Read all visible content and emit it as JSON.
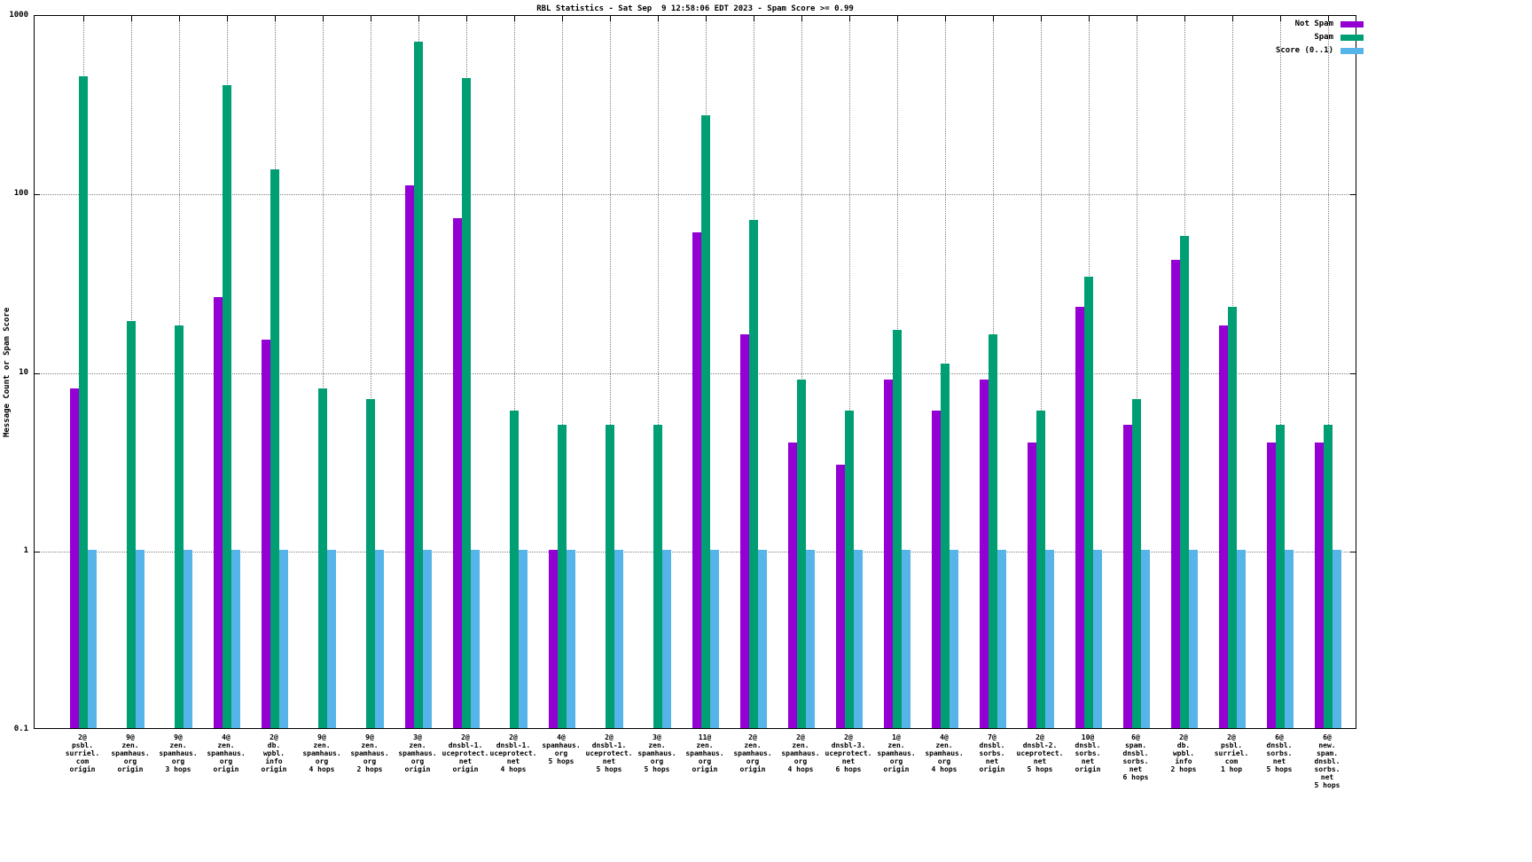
{
  "chart_data": {
    "type": "bar",
    "title": "RBL Statistics - Sat Sep  9 12:58:06 EDT 2023 - Spam Score >= 0.99",
    "ylabel": "Message Count or Spam Score",
    "xlabel": "",
    "y_scale": "log",
    "ylim": [
      0.1,
      1000
    ],
    "yticks": [
      0.1,
      1,
      10,
      100,
      1000
    ],
    "ytick_labels": [
      "0.1",
      "1",
      "10",
      "100",
      "1000"
    ],
    "grid": true,
    "legend_position": "top-right",
    "categories": [
      "2@ psbl. surriel. com origin",
      "9@ zen. spamhaus. org origin",
      "9@ zen. spamhaus. org 3 hops",
      "4@ zen. spamhaus. org origin",
      "2@ db. wpbl. info origin",
      "9@ zen. spamhaus. org 4 hops",
      "9@ zen. spamhaus. org 2 hops",
      "3@ zen. spamhaus. org origin",
      "2@ dnsbl-1. uceprotect. net origin",
      "2@ dnsbl-1. uceprotect. net 4 hops",
      "4@ spamhaus. org 5 hops",
      "2@ dnsbl-1. uceprotect. net 5 hops",
      "3@ zen. spamhaus. org 5 hops",
      "11@ zen. spamhaus. org origin",
      "2@ zen. spamhaus. org origin",
      "2@ zen. spamhaus. org 4 hops",
      "2@ dnsbl-3. uceprotect. net 6 hops",
      "1@ zen. spamhaus. org origin",
      "4@ zen. spamhaus. org 4 hops",
      "7@ dnsbl. sorbs. net origin",
      "2@ dnsbl-2. uceprotect. net 5 hops",
      "10@ dnsbl. sorbs. net origin",
      "6@ spam. dnsbl. sorbs. net 6 hops",
      "2@ db. wpbl. info 2 hops",
      "2@ psbl. surriel. com 1 hop",
      "6@ dnsbl. sorbs. net 5 hops",
      "6@ new. spam. dnsbl. sorbs. net 5 hops"
    ],
    "category_lines": [
      [
        "2@",
        "psbl.",
        "surriel.",
        "com",
        "origin"
      ],
      [
        "9@",
        "zen.",
        "spamhaus.",
        "org",
        "origin"
      ],
      [
        "9@",
        "zen.",
        "spamhaus.",
        "org",
        "3 hops"
      ],
      [
        "4@",
        "zen.",
        "spamhaus.",
        "org",
        "origin"
      ],
      [
        "2@",
        "db.",
        "wpbl.",
        "info",
        "origin"
      ],
      [
        "9@",
        "zen.",
        "spamhaus.",
        "org",
        "4 hops"
      ],
      [
        "9@",
        "zen.",
        "spamhaus.",
        "org",
        "2 hops"
      ],
      [
        "3@",
        "zen.",
        "spamhaus.",
        "org",
        "origin"
      ],
      [
        "2@",
        "dnsbl-1.",
        "uceprotect.",
        "net",
        "origin"
      ],
      [
        "2@",
        "dnsbl-1.",
        "uceprotect.",
        "net",
        "4 hops"
      ],
      [
        "4@",
        "spamhaus.",
        "org",
        "5 hops"
      ],
      [
        "2@",
        "dnsbl-1.",
        "uceprotect.",
        "net",
        "5 hops"
      ],
      [
        "3@",
        "zen.",
        "spamhaus.",
        "org",
        "5 hops"
      ],
      [
        "11@",
        "zen.",
        "spamhaus.",
        "org",
        "origin"
      ],
      [
        "2@",
        "zen.",
        "spamhaus.",
        "org",
        "origin"
      ],
      [
        "2@",
        "zen.",
        "spamhaus.",
        "org",
        "4 hops"
      ],
      [
        "2@",
        "dnsbl-3.",
        "uceprotect.",
        "net",
        "6 hops"
      ],
      [
        "1@",
        "zen.",
        "spamhaus.",
        "org",
        "origin"
      ],
      [
        "4@",
        "zen.",
        "spamhaus.",
        "org",
        "4 hops"
      ],
      [
        "7@",
        "dnsbl.",
        "sorbs.",
        "net",
        "origin"
      ],
      [
        "2@",
        "dnsbl-2.",
        "uceprotect.",
        "net",
        "5 hops"
      ],
      [
        "10@",
        "dnsbl.",
        "sorbs.",
        "net",
        "origin"
      ],
      [
        "6@",
        "spam.",
        "dnsbl.",
        "sorbs.",
        "net",
        "6 hops"
      ],
      [
        "2@",
        "db.",
        "wpbl.",
        "info",
        "2 hops"
      ],
      [
        "2@",
        "psbl.",
        "surriel.",
        "com",
        "1 hop"
      ],
      [
        "6@",
        "dnsbl.",
        "sorbs.",
        "net",
        "5 hops"
      ],
      [
        "6@",
        "new.",
        "spam.",
        "dnsbl.",
        "sorbs.",
        "net",
        "5 hops"
      ]
    ],
    "series": [
      {
        "name": "Not Spam",
        "key": "not-spam",
        "color": "#9400d3",
        "values": [
          8,
          null,
          null,
          26,
          15,
          null,
          null,
          110,
          72,
          null,
          1,
          null,
          null,
          60,
          16,
          4,
          3,
          9,
          6,
          9,
          4,
          23,
          5,
          42,
          18,
          4,
          4
        ]
      },
      {
        "name": "Spam",
        "key": "spam",
        "color": "#009e73",
        "values": [
          450,
          19,
          18,
          400,
          135,
          8,
          7,
          700,
          440,
          6,
          5,
          5,
          5,
          270,
          70,
          9,
          6,
          17,
          11,
          16,
          6,
          34,
          7,
          57,
          23,
          5,
          5
        ]
      },
      {
        "name": "Score (0..1)",
        "key": "score",
        "color": "#56b4e9",
        "values": [
          1,
          1,
          1,
          1,
          1,
          1,
          1,
          1,
          1,
          1,
          1,
          1,
          1,
          1,
          1,
          1,
          1,
          1,
          1,
          1,
          1,
          1,
          1,
          1,
          1,
          1,
          1
        ]
      }
    ]
  }
}
